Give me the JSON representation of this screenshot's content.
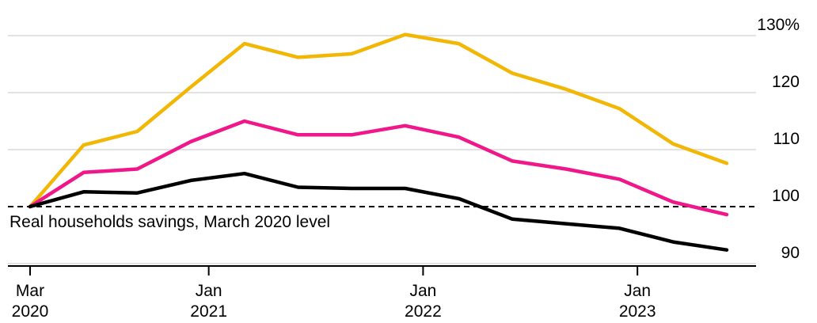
{
  "chart_data": {
    "type": "line",
    "title": "",
    "xlabel": "",
    "ylabel": "",
    "y_unit_suffix": "%",
    "ylim": [
      88,
      131
    ],
    "yticks": [
      90,
      100,
      110,
      120,
      130
    ],
    "ytick_labels": [
      "90",
      "100",
      "110",
      "120",
      "130%"
    ],
    "grid": true,
    "x": [
      "2020-03",
      "2020-06",
      "2020-09",
      "2020-12",
      "2021-03",
      "2021-06",
      "2021-09",
      "2021-12",
      "2022-03",
      "2022-06",
      "2022-09",
      "2022-12",
      "2023-03",
      "2023-06"
    ],
    "xticks": [
      {
        "x": "2020-03",
        "line1": "Mar",
        "line2": "2020"
      },
      {
        "x": "2021-01",
        "line1": "Jan",
        "line2": "2021"
      },
      {
        "x": "2022-01",
        "line1": "Jan",
        "line2": "2022"
      },
      {
        "x": "2023-01",
        "line1": "Jan",
        "line2": "2023"
      }
    ],
    "series": [
      {
        "color": "#f2b705",
        "values": [
          100,
          110.8,
          113.2,
          121,
          128.6,
          126.2,
          126.8,
          130.2,
          128.6,
          123.4,
          120.6,
          117.2,
          111,
          107.6
        ]
      },
      {
        "color": "#f0178a",
        "values": [
          100,
          106,
          106.6,
          111.4,
          115,
          112.6,
          112.6,
          114.2,
          112.2,
          108,
          106.6,
          104.8,
          100.8,
          98.6
        ]
      },
      {
        "color": "#000000",
        "values": [
          100,
          102.6,
          102.4,
          104.6,
          105.8,
          103.4,
          103.2,
          103.2,
          101.4,
          97.8,
          97,
          96.2,
          93.8,
          92.4
        ]
      }
    ],
    "reference_line": {
      "y": 100,
      "style": "dashed",
      "label": "Real households savings, March 2020 level"
    }
  }
}
